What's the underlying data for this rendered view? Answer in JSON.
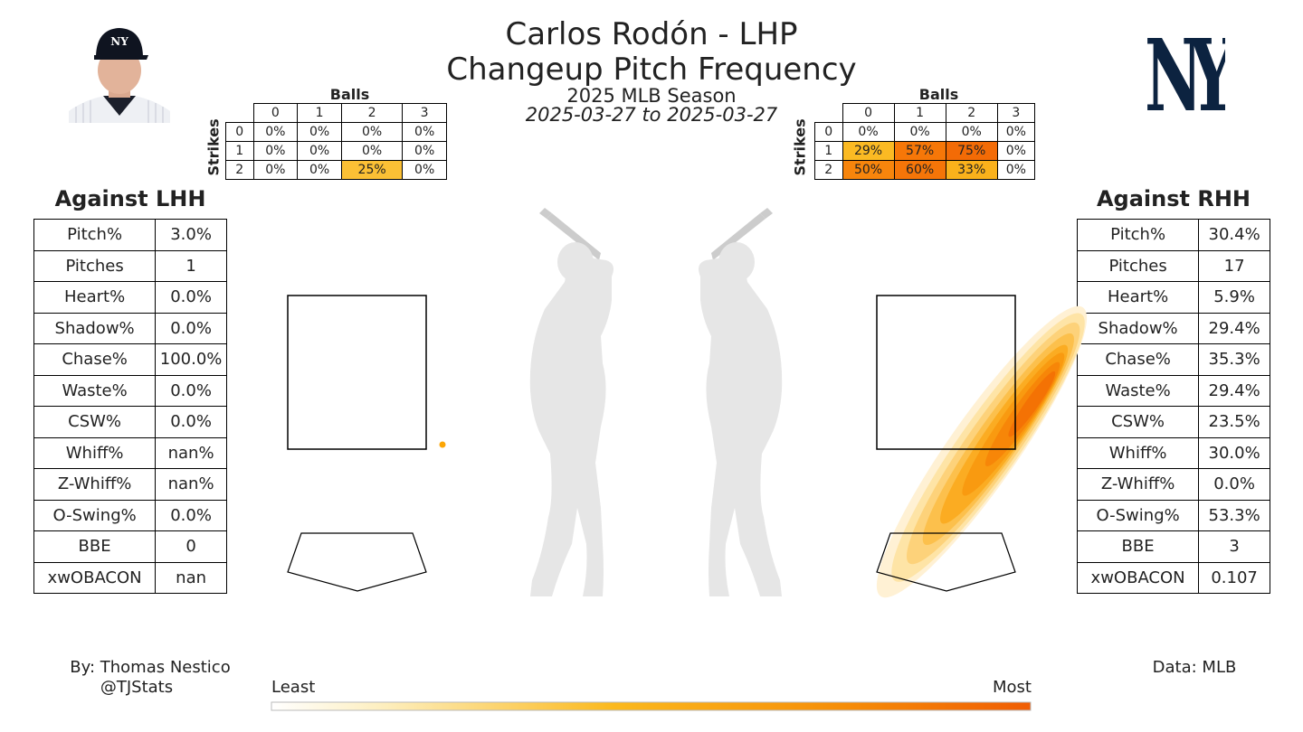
{
  "header": {
    "title": "Carlos Rodón - LHP",
    "subtitle": "Changeup Pitch Frequency",
    "season": "2025 MLB Season",
    "date_range": "2025-03-27 to 2025-03-27"
  },
  "icons": {
    "headshot": "player-headshot-icon",
    "team_logo": "yankees-logo-icon",
    "batter_left": "batter-silhouette-icon",
    "batter_right": "batter-silhouette-icon"
  },
  "colors": {
    "heat_low": "#fff3d6",
    "heat_mid": "#fcb51c",
    "heat_high": "#f26d04",
    "silhouette": "#e6e6e6",
    "team_navy": "#0c2340"
  },
  "lhh": {
    "heading": "Against LHH",
    "stats": [
      {
        "label": "Pitch%",
        "value": "3.0%"
      },
      {
        "label": "Pitches",
        "value": "1"
      },
      {
        "label": "Heart%",
        "value": "0.0%"
      },
      {
        "label": "Shadow%",
        "value": "0.0%"
      },
      {
        "label": "Chase%",
        "value": "100.0%"
      },
      {
        "label": "Waste%",
        "value": "0.0%"
      },
      {
        "label": "CSW%",
        "value": "0.0%"
      },
      {
        "label": "Whiff%",
        "value": "nan%"
      },
      {
        "label": "Z-Whiff%",
        "value": "nan%"
      },
      {
        "label": "O-Swing%",
        "value": "0.0%"
      },
      {
        "label": "BBE",
        "value": "0"
      },
      {
        "label": "xwOBACON",
        "value": "nan"
      }
    ],
    "count": {
      "balls_label": "Balls",
      "strikes_label": "Strikes",
      "ball_headers": [
        "0",
        "1",
        "2",
        "3"
      ],
      "rows": [
        {
          "strikes": "0",
          "cells": [
            "0%",
            "0%",
            "0%",
            "0%"
          ],
          "frac": [
            0,
            0,
            0,
            0
          ]
        },
        {
          "strikes": "1",
          "cells": [
            "0%",
            "0%",
            "0%",
            "0%"
          ],
          "frac": [
            0,
            0,
            0,
            0
          ]
        },
        {
          "strikes": "2",
          "cells": [
            "0%",
            "0%",
            "25%",
            "0%"
          ],
          "frac": [
            0,
            0,
            0.25,
            0
          ]
        }
      ]
    }
  },
  "rhh": {
    "heading": "Against RHH",
    "stats": [
      {
        "label": "Pitch%",
        "value": "30.4%"
      },
      {
        "label": "Pitches",
        "value": "17"
      },
      {
        "label": "Heart%",
        "value": "5.9%"
      },
      {
        "label": "Shadow%",
        "value": "29.4%"
      },
      {
        "label": "Chase%",
        "value": "35.3%"
      },
      {
        "label": "Waste%",
        "value": "29.4%"
      },
      {
        "label": "CSW%",
        "value": "23.5%"
      },
      {
        "label": "Whiff%",
        "value": "30.0%"
      },
      {
        "label": "Z-Whiff%",
        "value": "0.0%"
      },
      {
        "label": "O-Swing%",
        "value": "53.3%"
      },
      {
        "label": "BBE",
        "value": "3"
      },
      {
        "label": "xwOBACON",
        "value": "0.107"
      }
    ],
    "count": {
      "balls_label": "Balls",
      "strikes_label": "Strikes",
      "ball_headers": [
        "0",
        "1",
        "2",
        "3"
      ],
      "rows": [
        {
          "strikes": "0",
          "cells": [
            "0%",
            "0%",
            "0%",
            "0%"
          ],
          "frac": [
            0,
            0,
            0,
            0
          ]
        },
        {
          "strikes": "1",
          "cells": [
            "29%",
            "57%",
            "75%",
            "0%"
          ],
          "frac": [
            0.29,
            0.57,
            0.75,
            0
          ]
        },
        {
          "strikes": "2",
          "cells": [
            "50%",
            "60%",
            "33%",
            "0%"
          ],
          "frac": [
            0.5,
            0.6,
            0.33,
            0
          ]
        }
      ]
    }
  },
  "chart_data": {
    "type": "heatmap",
    "panels": [
      {
        "name": "Against LHH",
        "pitches": 1,
        "density": "single pitch below-right of the strike zone"
      },
      {
        "name": "Against RHH",
        "pitches": 17,
        "density": "diagonal density band from below the plate up through the right edge of the zone, peak at upper-right zone edge"
      }
    ],
    "colorbar": {
      "low_label": "Least",
      "high_label": "Most"
    }
  },
  "footer": {
    "author": "By: Thomas Nestico",
    "handle": "@TJStats",
    "source": "Data: MLB"
  }
}
